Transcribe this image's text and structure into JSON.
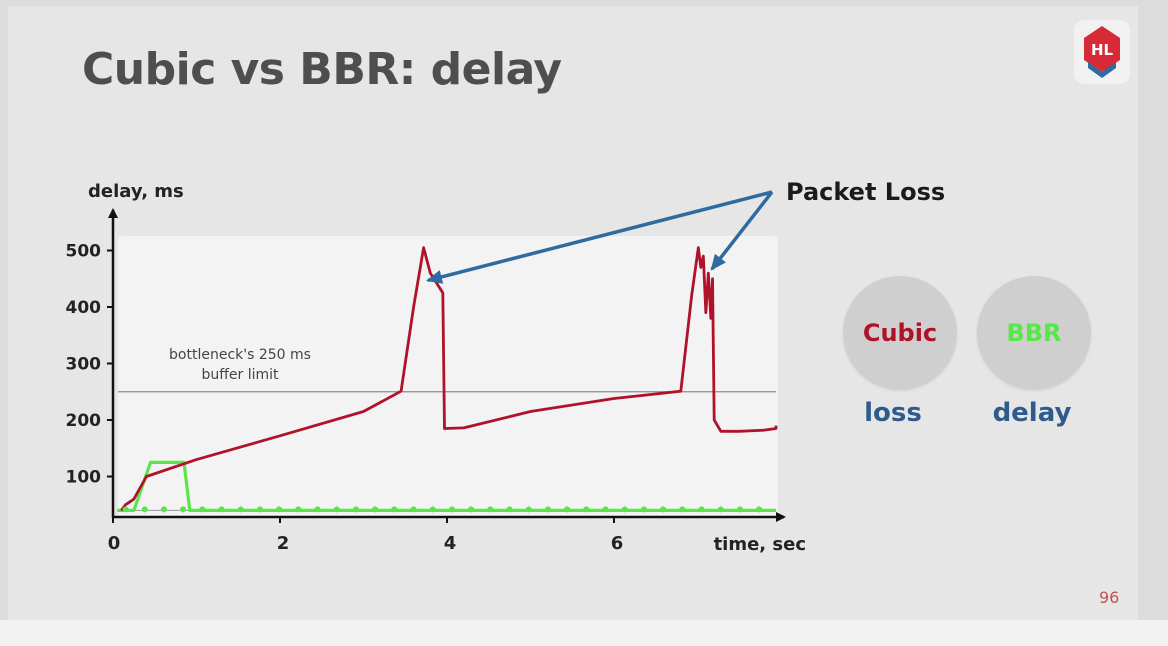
{
  "slide": {
    "title": "Cubic vs BBR: delay",
    "page_number": "96",
    "logo_text": "HL"
  },
  "legend": {
    "cubic_label": "Cubic",
    "cubic_caption": "loss",
    "bbr_label": "BBR",
    "bbr_caption": "delay"
  },
  "colors": {
    "cubic": "#b0122a",
    "bbr": "#59e64a",
    "arrow": "#2f6aa0",
    "caption": "#2f5b8c",
    "logo": "#d62b36"
  },
  "chart_data": {
    "type": "line",
    "title": "",
    "xlabel": "time, sec",
    "ylabel": "delay, ms",
    "xlim": [
      0,
      8
    ],
    "ylim": [
      0,
      540
    ],
    "x_ticks": [
      0,
      2,
      4,
      6
    ],
    "y_ticks": [
      100,
      200,
      300,
      400,
      500
    ],
    "grid": false,
    "reference_line": {
      "y": 250,
      "label_line1": "bottleneck's 250 ms",
      "label_line2": "buffer limit"
    },
    "annotation": {
      "text": "Packet Loss",
      "points_to": [
        [
          3.7,
          440
        ],
        [
          7.1,
          460
        ]
      ]
    },
    "series": [
      {
        "name": "Cubic",
        "points": [
          [
            0.1,
            40
          ],
          [
            0.15,
            50
          ],
          [
            0.25,
            60
          ],
          [
            0.4,
            100
          ],
          [
            1.0,
            130
          ],
          [
            2.0,
            172
          ],
          [
            3.0,
            215
          ],
          [
            3.45,
            251
          ],
          [
            3.6,
            400
          ],
          [
            3.72,
            505
          ],
          [
            3.8,
            460
          ],
          [
            3.95,
            425
          ],
          [
            3.97,
            185
          ],
          [
            4.2,
            186
          ],
          [
            5.0,
            215
          ],
          [
            6.0,
            238
          ],
          [
            6.8,
            251
          ],
          [
            6.93,
            420
          ],
          [
            7.01,
            505
          ],
          [
            7.04,
            470
          ],
          [
            7.07,
            490
          ],
          [
            7.1,
            390
          ],
          [
            7.13,
            460
          ],
          [
            7.16,
            380
          ],
          [
            7.18,
            450
          ],
          [
            7.2,
            200
          ],
          [
            7.28,
            180
          ],
          [
            7.5,
            180
          ],
          [
            7.8,
            182
          ],
          [
            8.0,
            185
          ],
          [
            8.2,
            190
          ]
        ]
      },
      {
        "name": "BBR",
        "points": [
          [
            0.05,
            40
          ],
          [
            0.25,
            40
          ],
          [
            0.45,
            125
          ],
          [
            0.85,
            125
          ],
          [
            0.92,
            40
          ],
          [
            8.2,
            40
          ]
        ]
      }
    ]
  }
}
